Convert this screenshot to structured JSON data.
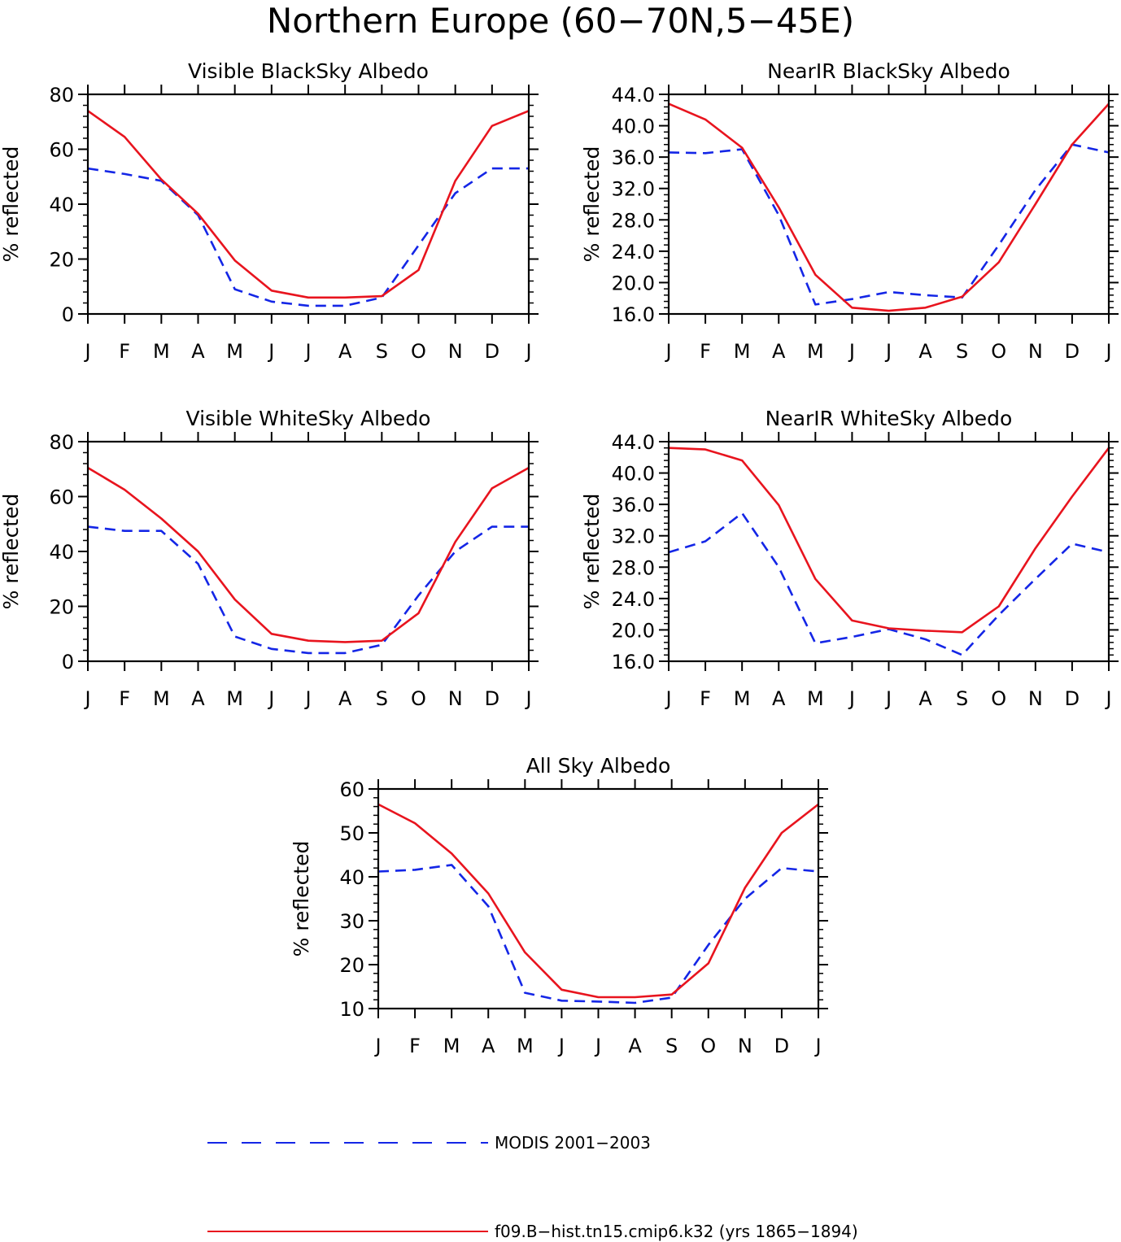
{
  "title": "Northern Europe (60−70N,5−45E)",
  "colors": {
    "model": "#e8141e",
    "modis": "#1426e6",
    "axis": "#000000"
  },
  "legend": {
    "modis_label": "MODIS 2001−2003",
    "model_label": "f09.B−hist.tn15.cmip6.k32 (yrs 1865−1894)"
  },
  "chart_data": [
    {
      "type": "line",
      "title": "Visible BlackSky Albedo",
      "ylabel": "% reflected",
      "categories": [
        "J",
        "F",
        "M",
        "A",
        "M",
        "J",
        "J",
        "A",
        "S",
        "O",
        "N",
        "D",
        "J"
      ],
      "ylim": [
        0,
        80
      ],
      "yticks": [
        "0",
        "20",
        "40",
        "60",
        "80"
      ],
      "series": [
        {
          "name": "f09.B−hist.tn15.cmip6.k32 (yrs 1865−1894)",
          "style": "solid",
          "values": [
            74,
            64.5,
            49,
            36.5,
            19.5,
            8.5,
            6,
            6,
            6.5,
            16,
            48.5,
            68.5,
            74
          ]
        },
        {
          "name": "MODIS 2001−2003",
          "style": "dashed",
          "values": [
            53,
            51,
            48.5,
            36,
            9,
            4.5,
            3,
            3,
            6,
            25,
            44,
            53,
            53
          ]
        }
      ]
    },
    {
      "type": "line",
      "title": "NearIR BlackSky Albedo",
      "ylabel": "% reflected",
      "categories": [
        "J",
        "F",
        "M",
        "A",
        "M",
        "J",
        "J",
        "A",
        "S",
        "O",
        "N",
        "D",
        "J"
      ],
      "ylim": [
        16,
        44
      ],
      "yticks": [
        "16.0",
        "20.0",
        "24.0",
        "28.0",
        "32.0",
        "36.0",
        "40.0",
        "44.0"
      ],
      "series": [
        {
          "name": "f09.B−hist.tn15.cmip6.k32 (yrs 1865−1894)",
          "style": "solid",
          "values": [
            42.8,
            40.8,
            37.2,
            29.6,
            21.0,
            16.8,
            16.4,
            16.8,
            18.2,
            22.6,
            30.0,
            37.6,
            42.8
          ]
        },
        {
          "name": "MODIS 2001−2003",
          "style": "dashed",
          "values": [
            36.6,
            36.5,
            37.0,
            28.6,
            17.2,
            17.9,
            18.8,
            18.4,
            18.1,
            24.8,
            31.8,
            37.6,
            36.6
          ]
        }
      ]
    },
    {
      "type": "line",
      "title": "Visible WhiteSky Albedo",
      "ylabel": "% reflected",
      "categories": [
        "J",
        "F",
        "M",
        "A",
        "M",
        "J",
        "J",
        "A",
        "S",
        "O",
        "N",
        "D",
        "J"
      ],
      "ylim": [
        0,
        80
      ],
      "yticks": [
        "0",
        "20",
        "40",
        "60",
        "80"
      ],
      "series": [
        {
          "name": "f09.B−hist.tn15.cmip6.k32 (yrs 1865−1894)",
          "style": "solid",
          "values": [
            70.5,
            62.5,
            52,
            40,
            22.5,
            10,
            7.5,
            7,
            7.5,
            17.5,
            43.5,
            63,
            70.5
          ]
        },
        {
          "name": "MODIS 2001−2003",
          "style": "dashed",
          "values": [
            49,
            47.5,
            47.5,
            35.5,
            9,
            4.5,
            3,
            3,
            6,
            24,
            40,
            49,
            49
          ]
        }
      ]
    },
    {
      "type": "line",
      "title": "NearIR WhiteSky Albedo",
      "ylabel": "% reflected",
      "categories": [
        "J",
        "F",
        "M",
        "A",
        "M",
        "J",
        "J",
        "A",
        "S",
        "O",
        "N",
        "D",
        "J"
      ],
      "ylim": [
        16,
        44
      ],
      "yticks": [
        "16.0",
        "20.0",
        "24.0",
        "28.0",
        "32.0",
        "36.0",
        "40.0",
        "44.0"
      ],
      "series": [
        {
          "name": "f09.B−hist.tn15.cmip6.k32 (yrs 1865−1894)",
          "style": "solid",
          "values": [
            43.2,
            43.0,
            41.6,
            35.9,
            26.5,
            21.2,
            20.2,
            19.9,
            19.7,
            23.0,
            30.4,
            37.0,
            43.2
          ]
        },
        {
          "name": "MODIS 2001−2003",
          "style": "dashed",
          "values": [
            29.9,
            31.3,
            34.9,
            28.0,
            18.3,
            19.1,
            20.1,
            18.8,
            16.8,
            21.9,
            26.5,
            31.0,
            29.9
          ]
        }
      ]
    },
    {
      "type": "line",
      "title": "All Sky Albedo",
      "ylabel": "% reflected",
      "categories": [
        "J",
        "F",
        "M",
        "A",
        "M",
        "J",
        "J",
        "A",
        "S",
        "O",
        "N",
        "D",
        "J"
      ],
      "ylim": [
        10,
        60
      ],
      "yticks": [
        "10",
        "20",
        "30",
        "40",
        "50",
        "60"
      ],
      "series": [
        {
          "name": "f09.B−hist.tn15.cmip6.k32 (yrs 1865−1894)",
          "style": "solid",
          "values": [
            56.5,
            52.2,
            45.3,
            36.2,
            22.8,
            14.3,
            12.6,
            12.6,
            13.2,
            20.3,
            37.5,
            50.0,
            56.5
          ]
        },
        {
          "name": "MODIS 2001−2003",
          "style": "dashed",
          "values": [
            41.2,
            41.6,
            42.7,
            33.3,
            13.6,
            11.8,
            11.6,
            11.3,
            12.5,
            24.5,
            35.0,
            42.0,
            41.2
          ]
        }
      ]
    }
  ]
}
